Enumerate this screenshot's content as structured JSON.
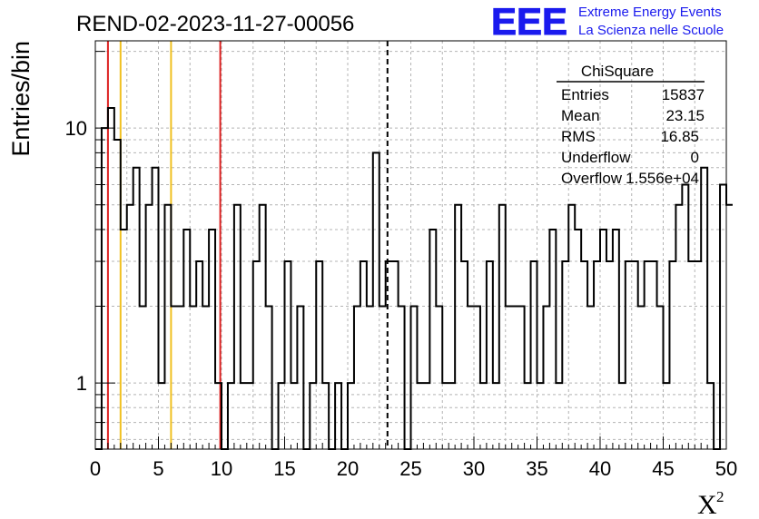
{
  "chart_data": {
    "type": "histogram",
    "title": "REND-02-2023-11-27-00056",
    "ylabel": "Entries/bin",
    "xlabel": "X",
    "xlabel_superscript": "2",
    "xlim": [
      0,
      50
    ],
    "ylim": [
      0.55,
      22
    ],
    "y_scale": "log",
    "grid": true,
    "bin_width": 0.5,
    "x_ticks": [
      0,
      5,
      10,
      15,
      20,
      25,
      30,
      35,
      40,
      45,
      50
    ],
    "y_ticks": [
      1,
      10
    ],
    "values": [
      0,
      10,
      12,
      9,
      4,
      5,
      7,
      2,
      5,
      7,
      1,
      5,
      2,
      2,
      4,
      2,
      3,
      2,
      4,
      1,
      0,
      1,
      5,
      1,
      1,
      3,
      5,
      2,
      0,
      1,
      3,
      1,
      2,
      0,
      1,
      3,
      1,
      0,
      1,
      0,
      1,
      2,
      3,
      2,
      8,
      2,
      3,
      3,
      2,
      0,
      2,
      1,
      1,
      4,
      2,
      1,
      1,
      5,
      3,
      2,
      2,
      1,
      3,
      1,
      5,
      2,
      2,
      2,
      1,
      3,
      1,
      2,
      4,
      1,
      3,
      5,
      4,
      3,
      2,
      3,
      4,
      3,
      4,
      1,
      3,
      3,
      2,
      3,
      3,
      2,
      1,
      3,
      5,
      6,
      3,
      3,
      7,
      1,
      0,
      6,
      5
    ],
    "vertical_lines": [
      {
        "x": 1.0,
        "color": "#dd2222",
        "style": "solid"
      },
      {
        "x": 2.0,
        "color": "#f0c020",
        "style": "solid"
      },
      {
        "x": 6.0,
        "color": "#f0c020",
        "style": "solid"
      },
      {
        "x": 9.9,
        "color": "#dd2222",
        "style": "solid"
      },
      {
        "x": 23.15,
        "color": "#000000",
        "style": "dashed"
      }
    ],
    "stats_box": {
      "title": "ChiSquare",
      "rows": [
        {
          "label": "Entries",
          "value": "15837"
        },
        {
          "label": "Mean",
          "value": "23.15"
        },
        {
          "label": "RMS",
          "value": "16.85"
        },
        {
          "label": "Underflow",
          "value": "0"
        },
        {
          "label": "Overflow",
          "value": "1.556e+04"
        }
      ]
    }
  },
  "logo": {
    "text": "EEE",
    "line1": "Extreme Energy Events",
    "line2": "La Scienza nelle Scuole",
    "color": "#1a1aee"
  }
}
